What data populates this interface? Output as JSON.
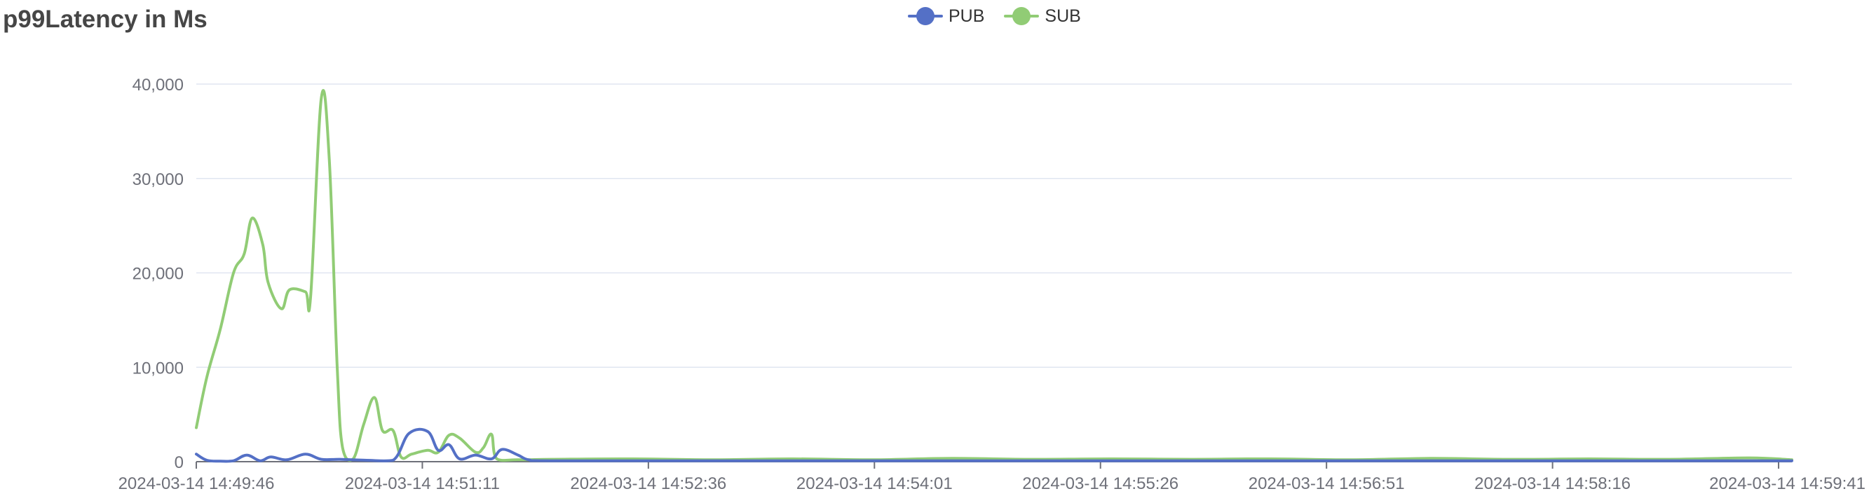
{
  "title": "p99Latency in Ms",
  "colors": {
    "pub": "#5470c6",
    "sub": "#91cc75",
    "grid": "#e0e6f1",
    "axis": "#6e7079"
  },
  "chart_data": {
    "type": "line",
    "title": "p99Latency in Ms",
    "xlabel": "",
    "ylabel": "",
    "x_ticks": [
      "2024-03-14 14:49:46",
      "2024-03-14 14:51:11",
      "2024-03-14 14:52:36",
      "2024-03-14 14:54:01",
      "2024-03-14 14:55:26",
      "2024-03-14 14:56:51",
      "2024-03-14 14:58:16",
      "2024-03-14 14:59:41"
    ],
    "x_range": [
      "2024-03-14 14:49:46",
      "2024-03-14 14:59:46"
    ],
    "y_ticks": [
      "0",
      "10,000",
      "20,000",
      "30,000",
      "40,000"
    ],
    "ylim": [
      0,
      40000
    ],
    "grid": "horizontal",
    "legend_position": "top-center",
    "series": [
      {
        "name": "PUB",
        "color": "#5470c6",
        "points": [
          [
            "2024-03-14 14:49:46",
            800
          ],
          [
            "2024-03-14 14:49:50",
            150
          ],
          [
            "2024-03-14 14:49:55",
            50
          ],
          [
            "2024-03-14 14:50:00",
            100
          ],
          [
            "2024-03-14 14:50:05",
            700
          ],
          [
            "2024-03-14 14:50:10",
            100
          ],
          [
            "2024-03-14 14:50:14",
            500
          ],
          [
            "2024-03-14 14:50:20",
            200
          ],
          [
            "2024-03-14 14:50:27",
            800
          ],
          [
            "2024-03-14 14:50:33",
            250
          ],
          [
            "2024-03-14 14:50:40",
            250
          ],
          [
            "2024-03-14 14:50:50",
            150
          ],
          [
            "2024-03-14 14:51:00",
            150
          ],
          [
            "2024-03-14 14:51:06",
            3000
          ],
          [
            "2024-03-14 14:51:13",
            3200
          ],
          [
            "2024-03-14 14:51:17",
            1200
          ],
          [
            "2024-03-14 14:51:21",
            1800
          ],
          [
            "2024-03-14 14:51:25",
            300
          ],
          [
            "2024-03-14 14:51:31",
            700
          ],
          [
            "2024-03-14 14:51:37",
            300
          ],
          [
            "2024-03-14 14:51:41",
            1300
          ],
          [
            "2024-03-14 14:51:47",
            700
          ],
          [
            "2024-03-14 14:51:51",
            200
          ],
          [
            "2024-03-14 14:52:00",
            100
          ],
          [
            "2024-03-14 14:53:00",
            100
          ],
          [
            "2024-03-14 14:54:00",
            100
          ],
          [
            "2024-03-14 14:55:00",
            100
          ],
          [
            "2024-03-14 14:56:00",
            100
          ],
          [
            "2024-03-14 14:57:00",
            100
          ],
          [
            "2024-03-14 14:58:00",
            100
          ],
          [
            "2024-03-14 14:59:00",
            100
          ],
          [
            "2024-03-14 14:59:46",
            100
          ]
        ]
      },
      {
        "name": "SUB",
        "color": "#91cc75",
        "points": [
          [
            "2024-03-14 14:49:46",
            3600
          ],
          [
            "2024-03-14 14:49:50",
            9000
          ],
          [
            "2024-03-14 14:49:55",
            14000
          ],
          [
            "2024-03-14 14:50:00",
            20000
          ],
          [
            "2024-03-14 14:50:04",
            22000
          ],
          [
            "2024-03-14 14:50:07",
            25800
          ],
          [
            "2024-03-14 14:50:11",
            23000
          ],
          [
            "2024-03-14 14:50:13",
            19000
          ],
          [
            "2024-03-14 14:50:18",
            16200
          ],
          [
            "2024-03-14 14:50:21",
            18200
          ],
          [
            "2024-03-14 14:50:27",
            18000
          ],
          [
            "2024-03-14 14:50:29",
            17500
          ],
          [
            "2024-03-14 14:50:33",
            38500
          ],
          [
            "2024-03-14 14:50:36",
            32000
          ],
          [
            "2024-03-14 14:50:39",
            10000
          ],
          [
            "2024-03-14 14:50:41",
            1500
          ],
          [
            "2024-03-14 14:50:45",
            300
          ],
          [
            "2024-03-14 14:50:49",
            4000
          ],
          [
            "2024-03-14 14:50:53",
            6800
          ],
          [
            "2024-03-14 14:50:56",
            3300
          ],
          [
            "2024-03-14 14:51:00",
            3300
          ],
          [
            "2024-03-14 14:51:03",
            500
          ],
          [
            "2024-03-14 14:51:07",
            800
          ],
          [
            "2024-03-14 14:51:13",
            1200
          ],
          [
            "2024-03-14 14:51:17",
            1000
          ],
          [
            "2024-03-14 14:51:21",
            2800
          ],
          [
            "2024-03-14 14:51:25",
            2500
          ],
          [
            "2024-03-14 14:51:31",
            1000
          ],
          [
            "2024-03-14 14:51:34",
            1500
          ],
          [
            "2024-03-14 14:51:37",
            2900
          ],
          [
            "2024-03-14 14:51:39",
            300
          ],
          [
            "2024-03-14 14:51:47",
            200
          ],
          [
            "2024-03-14 14:52:00",
            250
          ],
          [
            "2024-03-14 14:52:30",
            300
          ],
          [
            "2024-03-14 14:53:00",
            200
          ],
          [
            "2024-03-14 14:53:30",
            300
          ],
          [
            "2024-03-14 14:54:00",
            200
          ],
          [
            "2024-03-14 14:54:30",
            350
          ],
          [
            "2024-03-14 14:55:00",
            250
          ],
          [
            "2024-03-14 14:55:30",
            300
          ],
          [
            "2024-03-14 14:56:00",
            250
          ],
          [
            "2024-03-14 14:56:30",
            300
          ],
          [
            "2024-03-14 14:57:00",
            200
          ],
          [
            "2024-03-14 14:57:30",
            350
          ],
          [
            "2024-03-14 14:58:00",
            250
          ],
          [
            "2024-03-14 14:58:30",
            300
          ],
          [
            "2024-03-14 14:59:00",
            250
          ],
          [
            "2024-03-14 14:59:30",
            400
          ],
          [
            "2024-03-14 14:59:46",
            200
          ]
        ]
      }
    ]
  }
}
